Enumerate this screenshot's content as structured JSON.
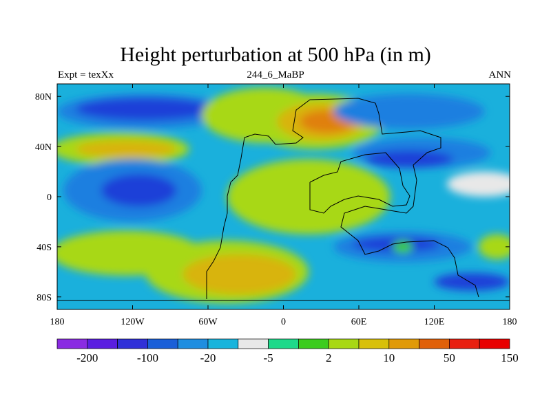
{
  "chart_data": {
    "type": "heatmap",
    "title": "Height perturbation at 500 hPa (in m)",
    "subtitle_left": "Expt = texXx",
    "subtitle_center": "244_6_MaBP",
    "subtitle_right": "ANN",
    "x_ticks": [
      "180",
      "120W",
      "60W",
      "0",
      "60E",
      "120E",
      "180"
    ],
    "x_tick_values": [
      -180,
      -120,
      -60,
      0,
      60,
      120,
      180
    ],
    "y_ticks": [
      "80N",
      "40N",
      "0",
      "40S",
      "80S"
    ],
    "y_tick_values": [
      80,
      40,
      0,
      -40,
      -80
    ],
    "xlim": [
      -180,
      180
    ],
    "ylim": [
      -90,
      90
    ],
    "colorbar_labels": [
      "-200",
      "-100",
      "-20",
      "-5",
      "2",
      "10",
      "50",
      "150"
    ],
    "colorbar_colors": [
      "#8a2be2",
      "#5a1ee0",
      "#3030d8",
      "#1a5fd8",
      "#1f8ee0",
      "#18b4dc",
      "#e8e8e8",
      "#1ed98a",
      "#3ccc1e",
      "#a8d814",
      "#d8c00a",
      "#e09a08",
      "#e06008",
      "#e82010",
      "#e80000"
    ],
    "palette": {
      "strong_neg": "#1f3fd8",
      "mid_neg": "#1a7fe0",
      "weak_neg": "#1ab0dc",
      "neutral": "#e8e8e8",
      "weak_pos": "#3ccc1e",
      "mid_pos": "#a8d814",
      "strong_pos": "#d8b40a",
      "peak_pos": "#e08008"
    },
    "field_blobs": [
      {
        "lon": -110,
        "lat": 68,
        "rlon": 70,
        "rlat": 14,
        "level": "mid_neg"
      },
      {
        "lon": -110,
        "lat": 70,
        "rlon": 55,
        "rlat": 9,
        "level": "strong_neg"
      },
      {
        "lon": -130,
        "lat": 38,
        "rlon": 55,
        "rlat": 13,
        "level": "mid_pos"
      },
      {
        "lon": -125,
        "lat": 38,
        "rlon": 40,
        "rlat": 7,
        "level": "strong_pos"
      },
      {
        "lon": -120,
        "lat": 5,
        "rlon": 55,
        "rlat": 25,
        "level": "mid_neg"
      },
      {
        "lon": -115,
        "lat": 5,
        "rlon": 30,
        "rlat": 13,
        "level": "strong_neg"
      },
      {
        "lon": -125,
        "lat": -45,
        "rlon": 60,
        "rlat": 18,
        "level": "mid_pos"
      },
      {
        "lon": -45,
        "lat": -60,
        "rlon": 65,
        "rlat": 25,
        "level": "mid_pos"
      },
      {
        "lon": -35,
        "lat": -62,
        "rlon": 45,
        "rlat": 16,
        "level": "strong_pos"
      },
      {
        "lon": -15,
        "lat": 65,
        "rlon": 50,
        "rlat": 22,
        "level": "mid_pos"
      },
      {
        "lon": 25,
        "lat": 60,
        "rlon": 55,
        "rlat": 22,
        "level": "mid_pos"
      },
      {
        "lon": 30,
        "lat": 60,
        "rlon": 35,
        "rlat": 15,
        "level": "strong_pos"
      },
      {
        "lon": 35,
        "lat": 60,
        "rlon": 22,
        "rlat": 9,
        "level": "peak_pos"
      },
      {
        "lon": 100,
        "lat": 68,
        "rlon": 60,
        "rlat": 14,
        "level": "mid_neg"
      },
      {
        "lon": 110,
        "lat": 35,
        "rlon": 55,
        "rlat": 12,
        "level": "mid_neg"
      },
      {
        "lon": 100,
        "lat": 30,
        "rlon": 35,
        "rlat": 7,
        "level": "strong_neg"
      },
      {
        "lon": 20,
        "lat": 0,
        "rlon": 65,
        "rlat": 30,
        "level": "mid_pos"
      },
      {
        "lon": 95,
        "lat": -40,
        "rlon": 55,
        "rlat": 12,
        "level": "mid_neg"
      },
      {
        "lon": 90,
        "lat": -38,
        "rlon": 35,
        "rlat": 6,
        "level": "strong_neg"
      },
      {
        "lon": 95,
        "lat": -40,
        "rlon": 8,
        "rlat": 5,
        "level": "weak_pos"
      },
      {
        "lon": 150,
        "lat": -68,
        "rlon": 30,
        "rlat": 7,
        "level": "strong_neg"
      },
      {
        "lon": 170,
        "lat": -40,
        "rlon": 15,
        "rlat": 10,
        "level": "mid_pos"
      },
      {
        "lon": 160,
        "lat": 10,
        "rlon": 30,
        "rlat": 10,
        "level": "neutral"
      }
    ]
  }
}
